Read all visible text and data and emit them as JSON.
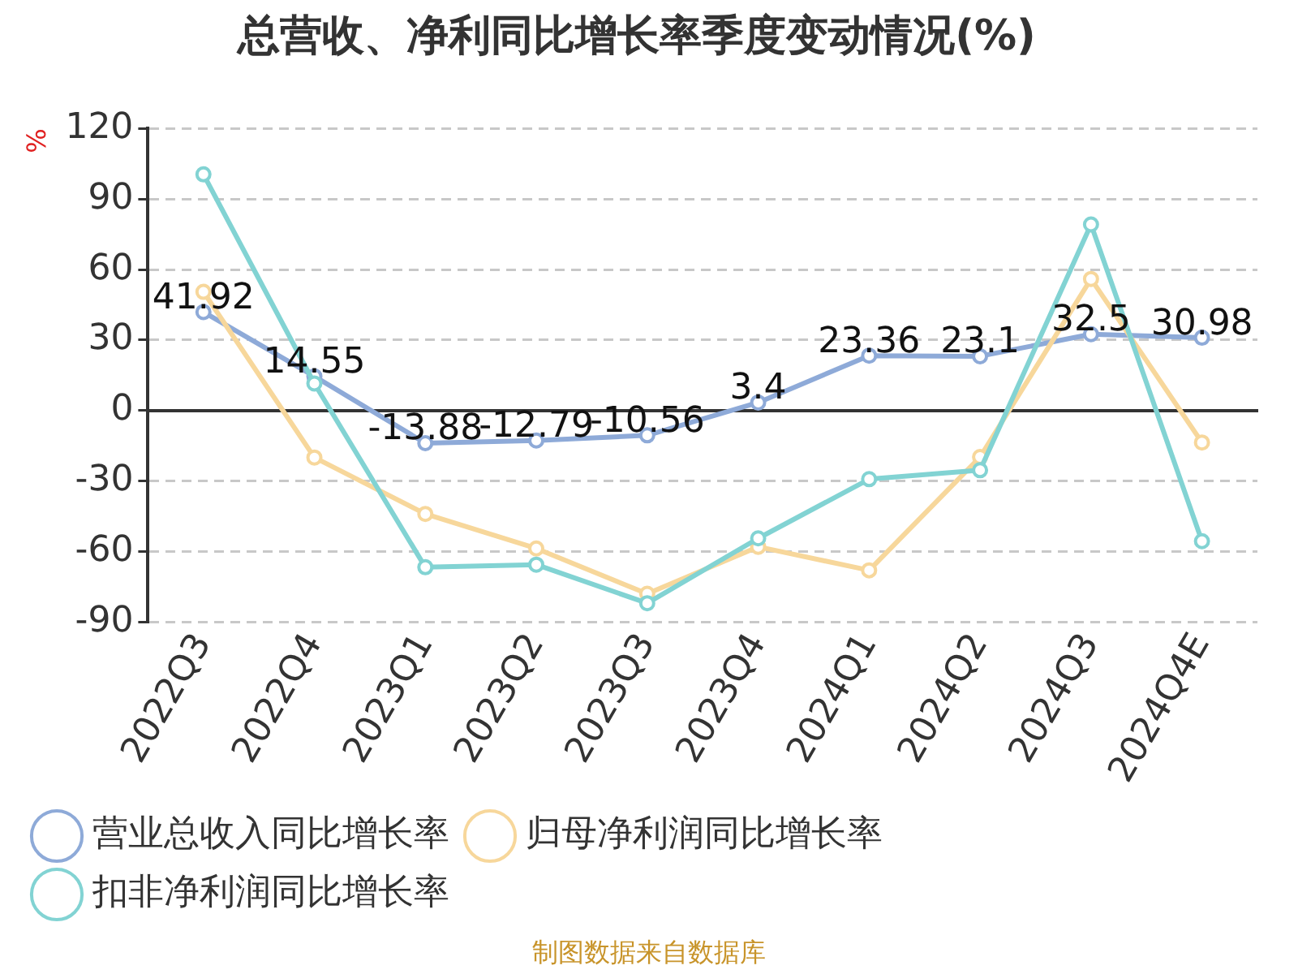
{
  "chart_data": {
    "type": "line",
    "title": "总营收、净利同比增长率季度变动情况(%)",
    "ylabel": "%",
    "categories": [
      "2022Q3",
      "2022Q4",
      "2023Q1",
      "2023Q2",
      "2023Q3",
      "2023Q4",
      "2024Q1",
      "2024Q2",
      "2024Q3",
      "2024Q4E"
    ],
    "series": [
      {
        "name": "营业总收入同比增长率",
        "color": "#8eaad8",
        "values": [
          41.92,
          14.55,
          -13.88,
          -12.79,
          -10.56,
          3.4,
          23.36,
          23.1,
          32.5,
          30.98
        ],
        "data_labels": true
      },
      {
        "name": "归母净利润同比增长率",
        "color": "#f7d79b",
        "values": [
          50.5,
          -20,
          -44,
          -58.7,
          -78,
          -58,
          -68,
          -19.8,
          56,
          -13.6
        ]
      },
      {
        "name": "扣非净利润同比增长率",
        "color": "#82d3d3",
        "values": [
          100.5,
          11.5,
          -66.7,
          -65.6,
          -82,
          -54.4,
          -29.2,
          -25.4,
          79.2,
          -55.6
        ]
      }
    ],
    "ylim": [
      -90,
      120
    ],
    "yticks": [
      -90,
      -60,
      -30,
      0,
      30,
      60,
      90,
      120
    ],
    "grid": "y",
    "legend": "bottom",
    "marker": "circle",
    "line_style": "solid",
    "annotations": [
      "制图数据来自数据库"
    ]
  }
}
